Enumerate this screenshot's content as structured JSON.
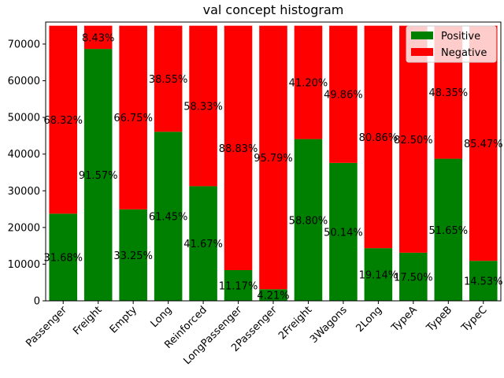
{
  "chart_data": {
    "type": "bar",
    "stacked": true,
    "title": "val concept histogram",
    "xlabel": "",
    "ylabel": "",
    "ylim": [
      0,
      76000
    ],
    "yticks": [
      0,
      10000,
      20000,
      30000,
      40000,
      50000,
      60000,
      70000
    ],
    "total": 75000,
    "legend_position": "top-right",
    "categories": [
      "Passenger",
      "Freight",
      "Empty",
      "Long",
      "Reinforced",
      "LongPassenger",
      "2Passenger",
      "2Freight",
      "3Wagons",
      "2Long",
      "TypeA",
      "TypeB",
      "TypeC"
    ],
    "series": [
      {
        "name": "Positive",
        "color": "#008000",
        "values": [
          23760,
          68678,
          24938,
          46088,
          31253,
          8378,
          3158,
          44100,
          37605,
          14355,
          13125,
          38738,
          10898
        ],
        "labels": [
          "31.68%",
          "91.57%",
          "33.25%",
          "61.45%",
          "41.67%",
          "11.17%",
          "4.21%",
          "58.80%",
          "50.14%",
          "19.14%",
          "17.50%",
          "51.65%",
          "14.53%"
        ]
      },
      {
        "name": "Negative",
        "color": "#ff0000",
        "values": [
          51240,
          6322,
          50062,
          28912,
          43748,
          66622,
          71842,
          30900,
          37395,
          60645,
          61875,
          36262,
          64102
        ],
        "labels": [
          "68.32%",
          "8.43%",
          "66.75%",
          "38.55%",
          "58.33%",
          "88.83%",
          "95.79%",
          "41.20%",
          "49.86%",
          "80.86%",
          "82.50%",
          "48.35%",
          "85.47%"
        ]
      }
    ]
  }
}
